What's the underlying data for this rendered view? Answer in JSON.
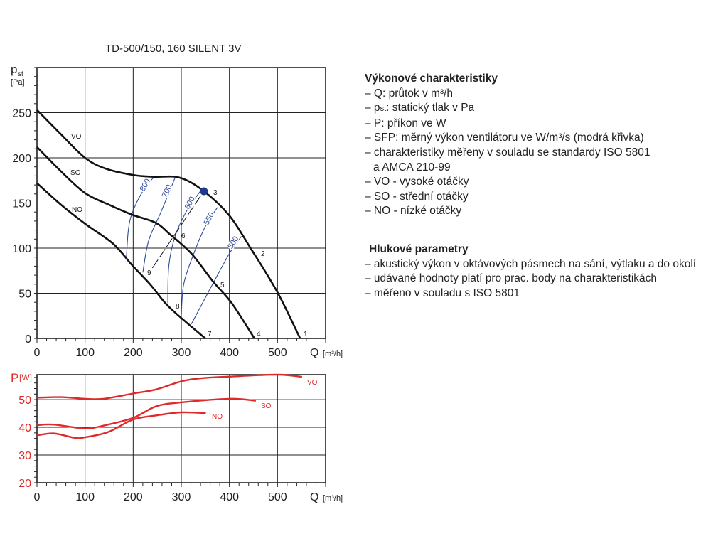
{
  "title": "TD-500/150, 160 SILENT 3V",
  "info": {
    "heading1": "Výkonové charakteristiky",
    "items1": [
      "– Q: průtok v m³/h",
      "– pst: statický tlak v Pa",
      "– P: příkon ve W",
      "– SFP: měrný výkon ventilátoru ve W/m³/s (modrá křivka)",
      "– charakteristiky měřeny v souladu se standardy ISO 5801",
      "a AMCA 210-99",
      "– VO - vysoké otáčky",
      "– SO - střední otáčky",
      "– NO - nízké otáčky"
    ],
    "heading2": "Hlukové parametry",
    "items2": [
      "– akustický výkon v oktávových pásmech na sání, výtlaku a do okolí",
      "– udávané hodnoty platí pro prac. body na charakteristikách",
      "– měřeno v souladu s ISO 5801"
    ]
  },
  "colors": {
    "curve": "#111111",
    "sfp": "#2e4a9a",
    "power": "#e02a2a",
    "grid": "#222222"
  },
  "chart_data": [
    {
      "type": "line",
      "title": "TD-500/150, 160 SILENT 3V",
      "ylabel": "pst",
      "ylabel_unit": "[Pa]",
      "xlabel": "Q",
      "xlabel_unit": "[m³/h]",
      "xlim": [
        0,
        600
      ],
      "ylim": [
        0,
        300
      ],
      "xticks": [
        0,
        100,
        200,
        300,
        400,
        500
      ],
      "yticks": [
        0,
        50,
        100,
        150,
        200,
        250
      ],
      "grid": true,
      "series": [
        {
          "name": "VO",
          "x": [
            0,
            50,
            100,
            143,
            200,
            242,
            297,
            347,
            400,
            444,
            500,
            547
          ],
          "y": [
            253,
            226,
            200,
            188,
            181,
            179,
            178,
            163,
            136,
            100,
            51,
            0
          ]
        },
        {
          "name": "SO",
          "x": [
            0,
            50,
            100,
            150,
            198,
            247,
            277,
            321,
            366,
            405,
            452
          ],
          "y": [
            212,
            185,
            161,
            148,
            137,
            128,
            115,
            94,
            63,
            39,
            0
          ]
        },
        {
          "name": "NO",
          "x": [
            0,
            50,
            100,
            158,
            198,
            235,
            267,
            297,
            350
          ],
          "y": [
            172,
            148,
            127,
            105,
            81,
            60,
            39,
            24,
            0
          ]
        }
      ],
      "sfp_series": [
        {
          "name": "800",
          "x": [
            186,
            190,
            198,
            220,
            245
          ],
          "y": [
            90,
            120,
            139,
            163,
            180
          ]
        },
        {
          "name": "700",
          "x": [
            220,
            232,
            257,
            275,
            287
          ],
          "y": [
            73,
            108,
            139,
            162,
            178
          ]
        },
        {
          "name": "600",
          "x": [
            272,
            274,
            287,
            312,
            341
          ],
          "y": [
            39,
            80,
            113,
            142,
            164
          ]
        },
        {
          "name": "550",
          "x": [
            300,
            305,
            326,
            350,
            375
          ],
          "y": [
            24,
            60,
            94,
            124,
            145
          ]
        },
        {
          "name": "500",
          "x": [
            321,
            360,
            400,
            425
          ],
          "y": [
            16,
            55,
            94,
            113
          ]
        }
      ],
      "operating_line": {
        "x": [
          240,
          343
        ],
        "y": [
          78,
          160
        ]
      },
      "highlight_point": {
        "label": "3",
        "x": 347,
        "y": 163
      },
      "point_labels": [
        "1",
        "2",
        "3",
        "4",
        "5",
        "6",
        "7",
        "8",
        "9"
      ],
      "curve_labels": [
        "VO",
        "SO",
        "NO"
      ]
    },
    {
      "type": "line",
      "ylabel": "P",
      "ylabel_unit": "[W]",
      "xlabel": "Q",
      "xlabel_unit": "[m³/h]",
      "xlim": [
        0,
        600
      ],
      "ylim": [
        20,
        59
      ],
      "xticks": [
        0,
        100,
        200,
        300,
        400,
        500
      ],
      "yticks": [
        20,
        30,
        40,
        50
      ],
      "grid": true,
      "series": [
        {
          "name": "VO",
          "x": [
            0,
            50,
            100,
            138,
            200,
            248,
            300,
            341,
            400,
            500,
            551
          ],
          "y": [
            50.7,
            50.9,
            50.3,
            50.3,
            52.2,
            53.7,
            56.6,
            57.7,
            58.3,
            59.0,
            58.2
          ]
        },
        {
          "name": "SO",
          "x": [
            0,
            35,
            100,
            143,
            200,
            248,
            300,
            400,
            455
          ],
          "y": [
            40.8,
            41.0,
            39.6,
            40.8,
            43.4,
            47.6,
            49.0,
            50.3,
            49.6
          ]
        },
        {
          "name": "NO",
          "x": [
            0,
            35,
            79,
            100,
            148,
            200,
            248,
            300,
            351
          ],
          "y": [
            37.1,
            37.8,
            36.2,
            36.4,
            38.3,
            42.8,
            44.3,
            45.4,
            45.1
          ]
        }
      ]
    }
  ]
}
